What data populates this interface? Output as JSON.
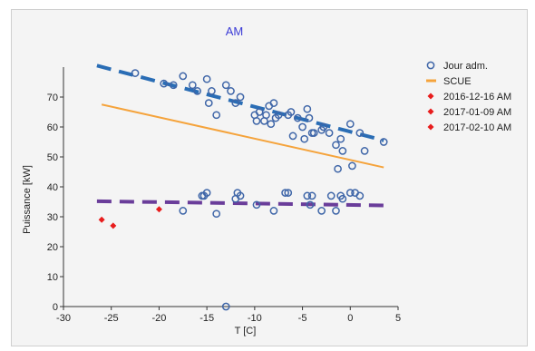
{
  "chart_data": {
    "type": "scatter",
    "title": "AM",
    "xlabel": "T [C]",
    "ylabel": "Puissance [kW]",
    "xlim": [
      -30,
      5
    ],
    "ylim": [
      0,
      80
    ],
    "xticks": [
      -30,
      -25,
      -20,
      -15,
      -10,
      -5,
      0,
      5
    ],
    "yticks": [
      0,
      10,
      20,
      30,
      40,
      50,
      60,
      70
    ],
    "legend_position": "top-right",
    "series": [
      {
        "name": "Jour adm.",
        "kind": "scatter",
        "marker": "open-circle",
        "color": "#3f66a8",
        "points": [
          [
            -22.5,
            78
          ],
          [
            -19.5,
            74.5
          ],
          [
            -18.5,
            74
          ],
          [
            -17.5,
            77
          ],
          [
            -16.5,
            74
          ],
          [
            -16,
            72
          ],
          [
            -15,
            76
          ],
          [
            -14.5,
            72
          ],
          [
            -14.8,
            68
          ],
          [
            -14,
            64
          ],
          [
            -13,
            74
          ],
          [
            -12.5,
            72
          ],
          [
            -12,
            68
          ],
          [
            -11.5,
            70
          ],
          [
            -10,
            64
          ],
          [
            -9.8,
            62
          ],
          [
            -9.5,
            65
          ],
          [
            -9,
            62
          ],
          [
            -8.8,
            64
          ],
          [
            -8.5,
            67
          ],
          [
            -8.3,
            61
          ],
          [
            -8,
            68
          ],
          [
            -7.8,
            63
          ],
          [
            -7.5,
            64
          ],
          [
            -6.5,
            64
          ],
          [
            -6.2,
            65
          ],
          [
            -6,
            57
          ],
          [
            -5.5,
            63
          ],
          [
            -5,
            60
          ],
          [
            -4.8,
            56
          ],
          [
            -4.5,
            66
          ],
          [
            -4.3,
            63
          ],
          [
            -4,
            58
          ],
          [
            -3.8,
            58
          ],
          [
            -3,
            59
          ],
          [
            -2.8,
            60
          ],
          [
            -2.2,
            58
          ],
          [
            -1.5,
            54
          ],
          [
            -1.3,
            46
          ],
          [
            -1,
            56
          ],
          [
            -0.8,
            52
          ],
          [
            0,
            61
          ],
          [
            0.2,
            47
          ],
          [
            1,
            58
          ],
          [
            1.5,
            52
          ],
          [
            3.5,
            55
          ],
          [
            -17.5,
            32
          ],
          [
            -15.5,
            37
          ],
          [
            -15.3,
            37
          ],
          [
            -15,
            38
          ],
          [
            -14,
            31
          ],
          [
            -12,
            36
          ],
          [
            -11.8,
            38
          ],
          [
            -11.5,
            37
          ],
          [
            -9.8,
            34
          ],
          [
            -8,
            32
          ],
          [
            -6.8,
            38
          ],
          [
            -6.5,
            38
          ],
          [
            -4.5,
            37
          ],
          [
            -4.2,
            34
          ],
          [
            -4,
            37
          ],
          [
            -3,
            32
          ],
          [
            -2,
            37
          ],
          [
            -1.5,
            32
          ],
          [
            -1,
            37
          ],
          [
            -0.8,
            36
          ],
          [
            0,
            38
          ],
          [
            0.5,
            38
          ],
          [
            1,
            37
          ],
          [
            -13,
            0
          ]
        ]
      },
      {
        "name": "SCUE",
        "kind": "line",
        "color": "#f5a33b",
        "points": [
          [
            -26,
            67.5
          ],
          [
            3.5,
            46.5
          ]
        ]
      },
      {
        "name": "2016-12-16 AM",
        "kind": "scatter",
        "marker": "diamond",
        "color": "#e81c1c",
        "points": [
          [
            -26,
            29
          ]
        ]
      },
      {
        "name": "2017-01-09 AM",
        "kind": "scatter",
        "marker": "diamond",
        "color": "#e81c1c",
        "points": [
          [
            -24.8,
            27
          ]
        ]
      },
      {
        "name": "2017-02-10 AM",
        "kind": "scatter",
        "marker": "diamond",
        "color": "#e81c1c",
        "points": [
          [
            -20,
            32.5
          ]
        ]
      }
    ],
    "fit_lines": [
      {
        "color": "#2a6db5",
        "dashed": true,
        "points": [
          [
            -26.5,
            80.5
          ],
          [
            3.5,
            55.5
          ]
        ]
      },
      {
        "color": "#6a3d9a",
        "dashed": true,
        "points": [
          [
            -26.5,
            35.2
          ],
          [
            3.5,
            33.8
          ]
        ]
      }
    ]
  }
}
